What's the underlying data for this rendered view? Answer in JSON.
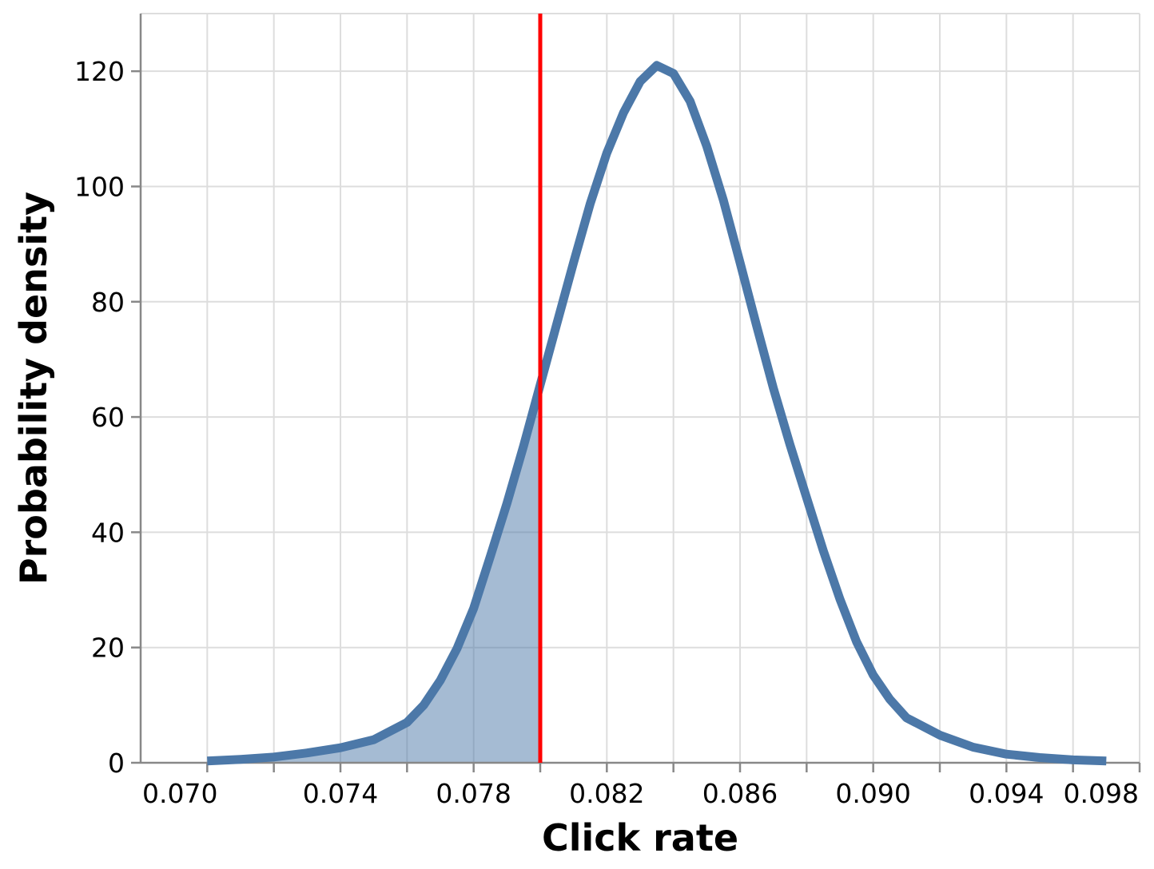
{
  "chart_data": {
    "type": "line",
    "title": "",
    "xlabel": "Click rate",
    "ylabel": "Probability density",
    "xlim": [
      0.068,
      0.098
    ],
    "ylim": [
      0,
      130
    ],
    "x_ticks": [
      0.07,
      0.072,
      0.074,
      0.076,
      0.078,
      0.08,
      0.082,
      0.084,
      0.086,
      0.088,
      0.09,
      0.092,
      0.094,
      0.096,
      0.098
    ],
    "x_tick_labels": [
      {
        "value": 0.07,
        "text": "0.070"
      },
      {
        "value": 0.074,
        "text": "0.074"
      },
      {
        "value": 0.078,
        "text": "0.078"
      },
      {
        "value": 0.082,
        "text": "0.082"
      },
      {
        "value": 0.086,
        "text": "0.086"
      },
      {
        "value": 0.09,
        "text": "0.090"
      },
      {
        "value": 0.094,
        "text": "0.094"
      },
      {
        "value": 0.098,
        "text": "0.098"
      }
    ],
    "y_ticks": [
      {
        "value": 0,
        "text": "0"
      },
      {
        "value": 20,
        "text": "20"
      },
      {
        "value": 40,
        "text": "40"
      },
      {
        "value": 60,
        "text": "60"
      },
      {
        "value": 80,
        "text": "80"
      },
      {
        "value": 100,
        "text": "100"
      },
      {
        "value": 120,
        "text": "120"
      }
    ],
    "grid": true,
    "series": [
      {
        "color": "#4c78a8",
        "x": [
          0.07,
          0.071,
          0.072,
          0.073,
          0.074,
          0.075,
          0.076,
          0.0765,
          0.077,
          0.0775,
          0.078,
          0.0785,
          0.079,
          0.0795,
          0.08,
          0.0805,
          0.081,
          0.0815,
          0.082,
          0.0825,
          0.083,
          0.0835,
          0.084,
          0.0845,
          0.085,
          0.0855,
          0.086,
          0.0865,
          0.087,
          0.0875,
          0.088,
          0.0885,
          0.089,
          0.0895,
          0.09,
          0.0905,
          0.091,
          0.092,
          0.093,
          0.094,
          0.095,
          0.096,
          0.097
        ],
        "y": [
          0.3,
          0.6,
          1.0,
          1.7,
          2.6,
          4.0,
          7.0,
          10.0,
          14.3,
          19.8,
          26.8,
          35.8,
          45.0,
          55.0,
          65.6,
          76.2,
          86.8,
          97.0,
          105.8,
          112.8,
          118.2,
          121.0,
          119.6,
          114.8,
          107.0,
          97.6,
          86.8,
          75.8,
          65.0,
          55.2,
          46.0,
          36.8,
          28.4,
          21.0,
          15.2,
          11.0,
          7.8,
          4.8,
          2.7,
          1.5,
          0.9,
          0.5,
          0.3
        ]
      }
    ],
    "shaded_region": {
      "x_from": 0.07,
      "x_to": 0.08,
      "color": "#4c78a8",
      "opacity": 0.5
    },
    "reference_line": {
      "x": 0.08,
      "color": "#ff0000"
    }
  }
}
